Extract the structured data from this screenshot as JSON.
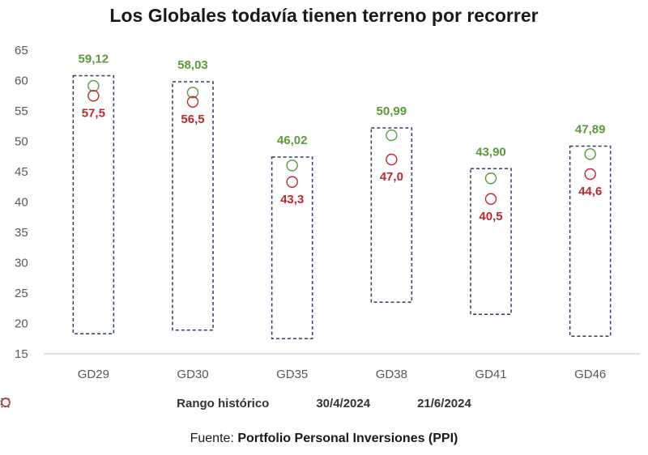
{
  "chart_data": {
    "type": "scatter",
    "title": "Los Globales todavía tienen terreno por recorrer",
    "categories": [
      "GD29",
      "GD30",
      "GD35",
      "GD38",
      "GD41",
      "GD46"
    ],
    "ylim": [
      15,
      65
    ],
    "yticks": [
      "15",
      "20",
      "25",
      "30",
      "35",
      "40",
      "45",
      "50",
      "55",
      "60",
      "65"
    ],
    "range": {
      "name": "Rango histórico",
      "low": [
        18.3,
        18.9,
        17.5,
        23.5,
        21.5,
        17.9
      ],
      "high": [
        60.8,
        59.8,
        47.4,
        52.2,
        45.5,
        49.2
      ]
    },
    "series": [
      {
        "name": "30/4/2024",
        "values": [
          59.12,
          58.03,
          46.02,
          50.99,
          43.9,
          47.89
        ],
        "labels": [
          "59,12",
          "58,03",
          "46,02",
          "50,99",
          "43,90",
          "47,89"
        ],
        "color": "#5a9a3a"
      },
      {
        "name": "21/6/2024",
        "values": [
          57.5,
          56.5,
          43.3,
          47.0,
          40.5,
          44.6
        ],
        "labels": [
          "57,5",
          "56,5",
          "43,3",
          "47,0",
          "40,5",
          "44,6"
        ],
        "color": "#c0282d"
      }
    ],
    "grid": false,
    "legend": "bottom"
  },
  "footer": {
    "prefix": "Fuente: ",
    "source": "Portfolio Personal Inversiones (PPI)"
  },
  "colors": {
    "range_border": "#2c3e6b",
    "axis": "#bfbfbf",
    "tick_text": "#595959"
  }
}
